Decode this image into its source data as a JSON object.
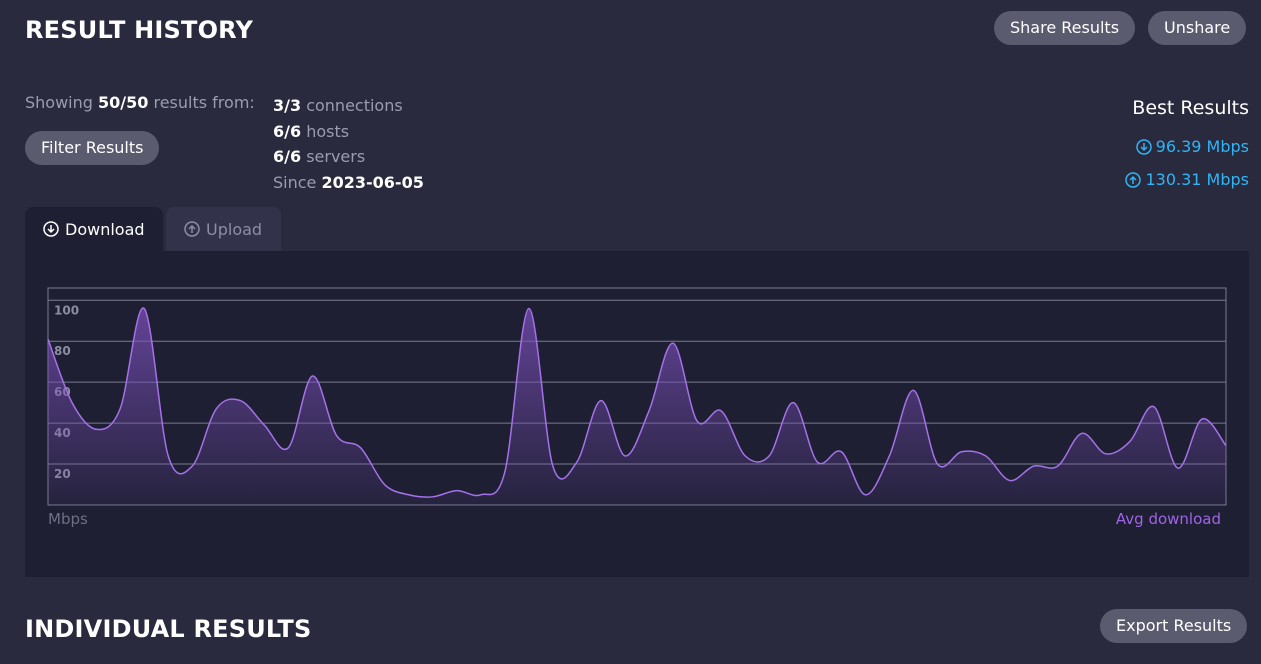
{
  "header": {
    "title": "RESULT HISTORY",
    "share_button": "Share Results",
    "unshare_button": "Unshare"
  },
  "summary": {
    "showing_prefix": "Showing",
    "showing_count": "50/50",
    "showing_suffix": "results from:",
    "filter_button": "Filter Results",
    "connections_count": "3/3",
    "connections_label": "connections",
    "hosts_count": "6/6",
    "hosts_label": "hosts",
    "servers_count": "6/6",
    "servers_label": "servers",
    "since_label": "Since",
    "since_date": "2023-06-05"
  },
  "best_results": {
    "title": "Best Results",
    "download": "96.39 Mbps",
    "upload": "130.31 Mbps"
  },
  "tabs": {
    "download": "Download",
    "upload": "Upload"
  },
  "chart_data": {
    "type": "area",
    "y_label": "Mbps",
    "legend": "Avg download",
    "color": "#a472e8",
    "values": [
      81,
      50,
      37,
      47,
      96,
      24,
      19,
      47,
      51,
      39,
      28,
      63,
      34,
      28,
      10,
      5,
      4,
      7,
      5,
      16,
      96,
      19,
      21,
      51,
      24,
      46,
      79,
      41,
      46,
      24,
      24,
      50,
      21,
      26,
      5,
      24,
      56,
      20,
      26,
      24,
      12,
      19,
      19,
      35,
      25,
      31,
      48,
      18,
      42,
      29
    ],
    "ylim": [
      0,
      106
    ],
    "yticks": [
      20,
      40,
      60,
      80,
      100
    ],
    "grid": true
  },
  "individual": {
    "title": "INDIVIDUAL RESULTS",
    "export_button": "Export Results"
  }
}
